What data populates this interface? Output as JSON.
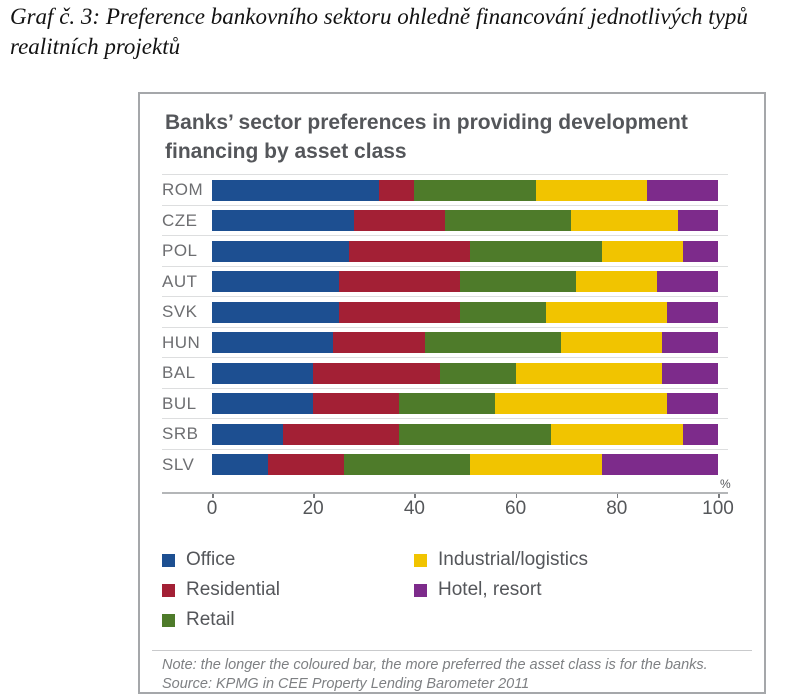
{
  "page": {
    "title_line1": "Graf č. 3: Preference bankovního sektoru ohledně financování jednotlivých typů",
    "title_line2": "realitních projektů"
  },
  "chart": {
    "title_line1": "Banks’ sector preferences in providing development",
    "title_line2": "financing by asset class",
    "percent_label": "%"
  },
  "chart_data": {
    "type": "bar",
    "orientation": "horizontal",
    "stacked": true,
    "title": "Banks’ sector preferences in providing development financing by asset class",
    "categories": [
      "ROM",
      "CZE",
      "POL",
      "AUT",
      "SVK",
      "HUN",
      "BAL",
      "BUL",
      "SRB",
      "SLV"
    ],
    "series": [
      {
        "name": "Office",
        "color": "#1d4f91",
        "values": [
          33,
          28,
          27,
          25,
          25,
          24,
          20,
          20,
          14,
          11
        ]
      },
      {
        "name": "Residential",
        "color": "#a32035",
        "values": [
          7,
          18,
          24,
          24,
          24,
          18,
          25,
          17,
          23,
          15
        ]
      },
      {
        "name": "Retail",
        "color": "#4e7b2a",
        "values": [
          24,
          25,
          26,
          23,
          17,
          27,
          15,
          19,
          30,
          25
        ]
      },
      {
        "name": "Industrial/logistics",
        "color": "#f1c400",
        "values": [
          22,
          21,
          16,
          16,
          24,
          20,
          29,
          34,
          26,
          26
        ]
      },
      {
        "name": "Hotel, resort",
        "color": "#7d2b8b",
        "values": [
          14,
          8,
          7,
          12,
          10,
          11,
          11,
          10,
          7,
          23
        ]
      }
    ],
    "xlim": [
      0,
      100
    ],
    "x_ticks": [
      "0",
      "20",
      "40",
      "60",
      "80",
      "100"
    ],
    "x_unit": "%",
    "grid": false,
    "legend_position": "bottom"
  },
  "note": "Note: the longer the coloured bar, the more preferred the asset class is for the banks.",
  "source": "Source: KPMG in CEE Property Lending Barometer 2011"
}
